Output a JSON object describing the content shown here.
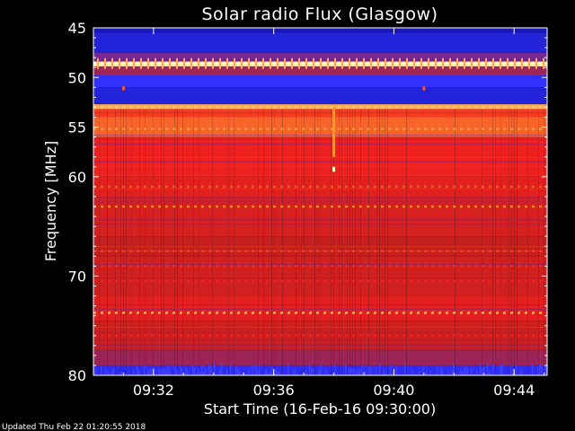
{
  "chart_data": {
    "type": "heatmap",
    "title": "Solar radio Flux (Glasgow)",
    "xlabel": "Start Time (16-Feb-16 09:30:00)",
    "ylabel": "Frequency [MHz]",
    "x_unit": "minutes after 09:30:00",
    "xlim": [
      0,
      15.1
    ],
    "ylim": [
      45,
      80
    ],
    "y_inverted": true,
    "x_ticks": [
      {
        "value": 2,
        "label": "09:32"
      },
      {
        "value": 6,
        "label": "09:36"
      },
      {
        "value": 10,
        "label": "09:40"
      },
      {
        "value": 14,
        "label": "09:44"
      }
    ],
    "y_ticks": [
      45,
      50,
      55,
      60,
      70,
      80
    ],
    "colormap": [
      "#1010a0",
      "#3030ff",
      "#c02020",
      "#ee2020",
      "#ff9030",
      "#ffffc0"
    ],
    "frequency_bands": [
      {
        "from": 45.0,
        "to": 45.5,
        "level": 0.05
      },
      {
        "from": 45.5,
        "to": 47.5,
        "level": 0.12
      },
      {
        "from": 47.5,
        "to": 48.4,
        "level": 0.3
      },
      {
        "from": 48.4,
        "to": 48.9,
        "level": 0.95
      },
      {
        "from": 48.9,
        "to": 49.8,
        "level": 0.35
      },
      {
        "from": 49.8,
        "to": 51.0,
        "level": 0.2
      },
      {
        "from": 51.0,
        "to": 52.7,
        "level": 0.12
      },
      {
        "from": 52.7,
        "to": 53.2,
        "level": 0.85
      },
      {
        "from": 53.2,
        "to": 54.0,
        "level": 0.65
      },
      {
        "from": 54.0,
        "to": 56.0,
        "level": 0.72
      },
      {
        "from": 56.0,
        "to": 60.0,
        "level": 0.6
      },
      {
        "from": 60.0,
        "to": 62.0,
        "level": 0.55
      },
      {
        "from": 62.0,
        "to": 66.0,
        "level": 0.5
      },
      {
        "from": 66.0,
        "to": 68.0,
        "level": 0.42
      },
      {
        "from": 68.0,
        "to": 72.0,
        "level": 0.47
      },
      {
        "from": 72.0,
        "to": 74.5,
        "level": 0.55
      },
      {
        "from": 74.5,
        "to": 77.5,
        "level": 0.45
      },
      {
        "from": 77.5,
        "to": 79.0,
        "level": 0.35
      },
      {
        "from": 79.0,
        "to": 80.0,
        "level": 0.18
      }
    ],
    "emission_lines": [
      {
        "freq": 48.6,
        "level": 1.0
      },
      {
        "freq": 53.0,
        "level": 0.9
      },
      {
        "freq": 55.2,
        "level": 0.82
      },
      {
        "freq": 61.0,
        "level": 0.7
      },
      {
        "freq": 63.0,
        "level": 0.78
      },
      {
        "freq": 67.5,
        "level": 0.65
      },
      {
        "freq": 69.0,
        "level": 0.62
      },
      {
        "freq": 70.5,
        "level": 0.6
      },
      {
        "freq": 73.7,
        "level": 0.85
      },
      {
        "freq": 76.0,
        "level": 0.6
      }
    ],
    "events": [
      {
        "time": 8.0,
        "freq_from": 53.0,
        "freq_to": 58.0,
        "level": 0.8
      },
      {
        "time": 8.0,
        "freq_from": 59.0,
        "freq_to": 59.5,
        "level": 1.0
      },
      {
        "time": 1.0,
        "freq_from": 50.9,
        "freq_to": 51.3,
        "level": 0.7
      },
      {
        "time": 11.0,
        "freq_from": 50.9,
        "freq_to": 51.3,
        "level": 0.7
      }
    ]
  },
  "footer": {
    "updated_text": "Updated Thu Feb 22 01:20:55 2018"
  }
}
